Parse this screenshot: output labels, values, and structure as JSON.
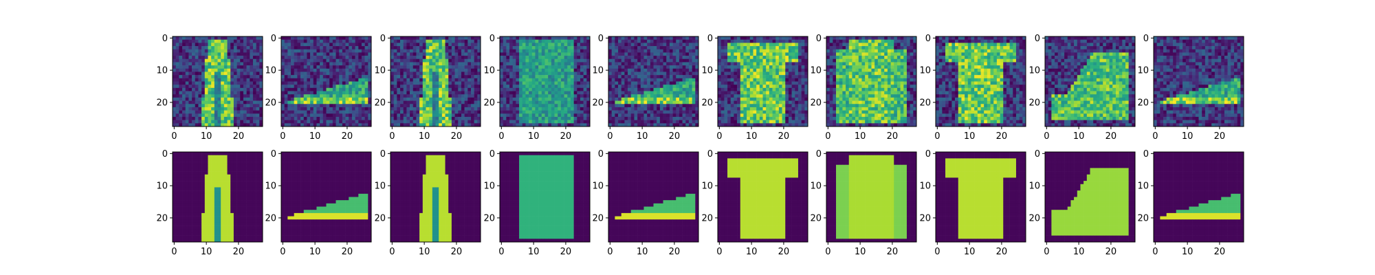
{
  "chart_data": {
    "type": "heatmap",
    "layout": {
      "rows": 2,
      "cols": 10
    },
    "image_size": [
      28,
      28
    ],
    "colormap": "viridis",
    "row_contents": [
      "noisy",
      "reconstructed"
    ],
    "items": [
      "trouser",
      "sneaker",
      "trouser",
      "bag",
      "sneaker",
      "t-shirt",
      "pullover",
      "t-shirt",
      "ankle-boot",
      "sneaker"
    ],
    "x_ticks": [
      0,
      10,
      20
    ],
    "y_ticks": [
      0,
      10,
      20
    ],
    "x_tick_labels": [
      "0",
      "10",
      "20"
    ],
    "y_tick_labels": [
      "0",
      "10",
      "20"
    ],
    "xlim": [
      -0.5,
      27.5
    ],
    "ylim": [
      27.5,
      -0.5
    ],
    "colors": {
      "low": "#440154",
      "mid": "#21918c",
      "high": "#fde725"
    }
  }
}
